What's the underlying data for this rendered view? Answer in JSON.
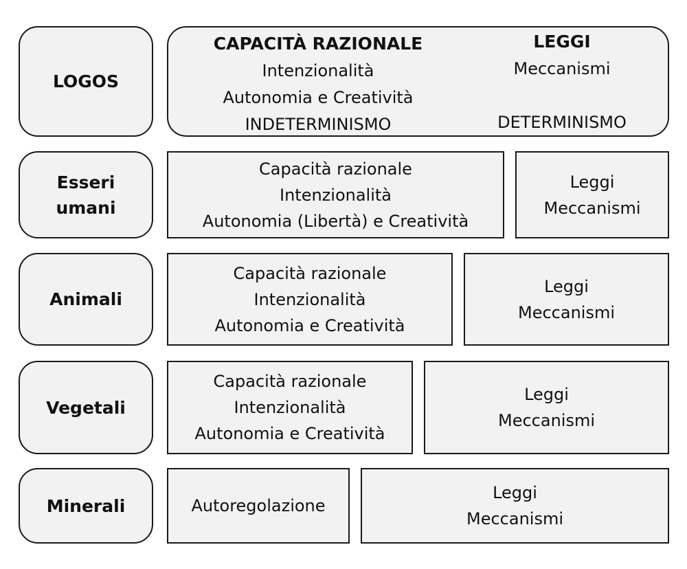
{
  "rows": [
    {
      "label": "LOGOS",
      "left": [
        "CAPACITÀ RAZIONALE",
        "Intenzionalità",
        "Autonomia e Creatività",
        "INDETERMINISMO"
      ],
      "right": [
        "LEGGI",
        "Meccanismi",
        "DETERMINISMO"
      ]
    },
    {
      "label_lines": [
        "Esseri",
        "umani"
      ],
      "left": [
        "Capacità razionale",
        "Intenzionalità",
        "Autonomia (Libertà) e Creatività"
      ],
      "right": [
        "Leggi",
        "Meccanismi"
      ]
    },
    {
      "label": "Animali",
      "left": [
        "Capacità razionale",
        "Intenzionalità",
        "Autonomia e Creatività"
      ],
      "right": [
        "Leggi",
        "Meccanismi"
      ]
    },
    {
      "label": "Vegetali",
      "left": [
        "Capacità razionale",
        "Intenzionalità",
        "Autonomia e Creatività"
      ],
      "right": [
        "Leggi",
        "Meccanismi"
      ]
    },
    {
      "label": "Minerali",
      "left": [
        "Autoregolazione"
      ],
      "right": [
        "Leggi",
        "Meccanismi"
      ]
    }
  ],
  "colors": {
    "fill": "#f2f2f2",
    "border": "#1a1a1a"
  }
}
